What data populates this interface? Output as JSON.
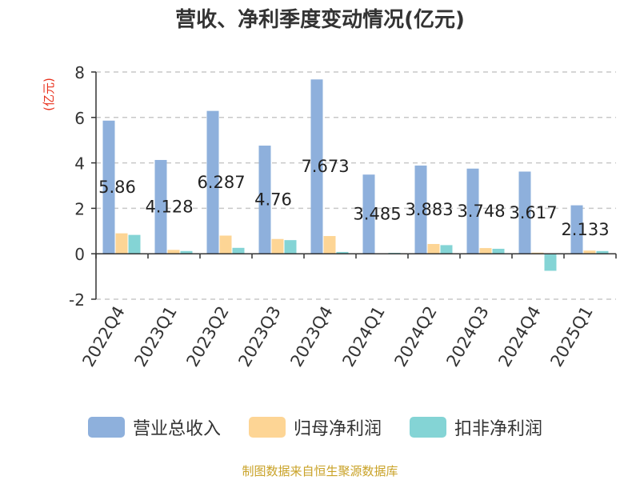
{
  "chart_data": {
    "type": "bar",
    "title": "营收、净利季度变动情况(亿元)",
    "ylabel": "(亿元)",
    "ylim": [
      -2,
      8
    ],
    "yticks": [
      -2,
      0,
      2,
      4,
      6,
      8
    ],
    "grid": true,
    "legend_position": "bottom",
    "categories": [
      "2022Q4",
      "2023Q1",
      "2023Q2",
      "2023Q3",
      "2023Q4",
      "2024Q1",
      "2024Q2",
      "2024Q3",
      "2024Q4",
      "2025Q1"
    ],
    "series": [
      {
        "name": "营业总收入",
        "color": "#8eb0dc",
        "values": [
          5.86,
          4.128,
          6.287,
          4.76,
          7.673,
          3.485,
          3.883,
          3.748,
          3.617,
          2.133
        ],
        "labels": [
          "5.86",
          "4.128",
          "6.287",
          "4.76",
          "7.673",
          "3.485",
          "3.883",
          "3.748",
          "3.617",
          "2.133"
        ]
      },
      {
        "name": "归母净利润",
        "color": "#fdd595",
        "values": [
          0.9,
          0.17,
          0.8,
          0.65,
          0.78,
          0.02,
          0.43,
          0.25,
          0.05,
          0.14
        ]
      },
      {
        "name": "扣非净利润",
        "color": "#84d4d5",
        "values": [
          0.83,
          0.12,
          0.26,
          0.6,
          0.08,
          0.04,
          0.38,
          0.22,
          -0.75,
          0.12
        ]
      }
    ]
  },
  "footer": "制图数据来自恒生聚源数据库"
}
